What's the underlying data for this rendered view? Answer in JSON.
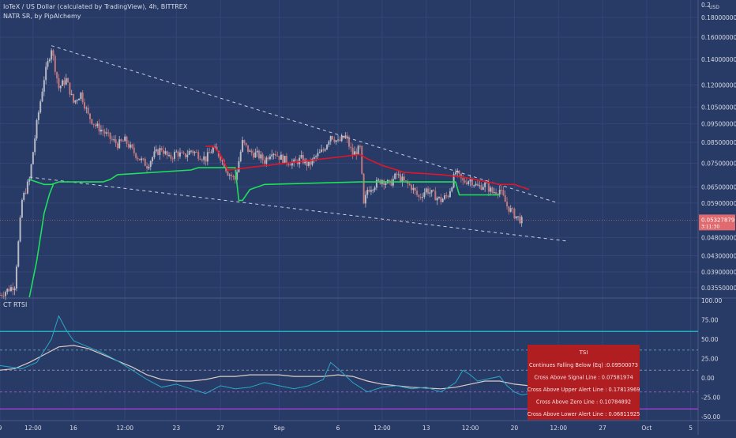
{
  "header": {
    "symbol_line": "IoTeX / US Dollar (calculated by TradingView), 4h, BITTREX",
    "indicator_line": "NATR SR, by PipAlchemy"
  },
  "lower_pane": {
    "indicator_label": "CT RTSI"
  },
  "chart_data": [
    {
      "type": "candlestick",
      "pair": "IoTeX / US Dollar",
      "source": "BITTREX",
      "interval": "4h",
      "currency_label": "USD",
      "y_scale": "log",
      "ylim": [
        0.0335,
        0.2
      ],
      "y_tick_labels": [
        "0.2",
        "0.18000000",
        "0.16000000",
        "0.14000000",
        "0.12000000",
        "0.10500000",
        "0.09500000",
        "0.08500000",
        "0.07500000",
        "0.06500000",
        "0.05900000",
        "0.04800000",
        "0.04300000",
        "0.03900000",
        "0.03550000"
      ],
      "y_tick_values": [
        0.2,
        0.18,
        0.16,
        0.14,
        0.12,
        0.105,
        0.095,
        0.085,
        0.075,
        0.065,
        0.059,
        0.048,
        0.043,
        0.039,
        0.0355
      ],
      "last_price_label": "0.05327879",
      "countdown_label": "3:11:30",
      "price_path": [
        [
          0,
          0.034
        ],
        [
          4,
          0.036
        ],
        [
          6,
          0.06
        ],
        [
          8,
          0.068
        ],
        [
          10,
          0.095
        ],
        [
          12,
          0.125
        ],
        [
          14,
          0.15
        ],
        [
          16,
          0.118
        ],
        [
          18,
          0.124
        ],
        [
          20,
          0.108
        ],
        [
          22,
          0.114
        ],
        [
          24,
          0.1
        ],
        [
          26,
          0.094
        ],
        [
          28,
          0.091
        ],
        [
          30,
          0.087
        ],
        [
          32,
          0.084
        ],
        [
          34,
          0.086
        ],
        [
          36,
          0.081
        ],
        [
          38,
          0.077
        ],
        [
          40,
          0.074
        ],
        [
          42,
          0.079
        ],
        [
          44,
          0.082
        ],
        [
          46,
          0.077
        ],
        [
          48,
          0.08
        ],
        [
          50,
          0.078
        ],
        [
          52,
          0.081
        ],
        [
          54,
          0.079
        ],
        [
          56,
          0.077
        ],
        [
          58,
          0.082
        ],
        [
          60,
          0.078
        ],
        [
          62,
          0.071
        ],
        [
          64,
          0.068
        ],
        [
          66,
          0.085
        ],
        [
          68,
          0.08
        ],
        [
          70,
          0.079
        ],
        [
          72,
          0.076
        ],
        [
          74,
          0.081
        ],
        [
          76,
          0.078
        ],
        [
          78,
          0.076
        ],
        [
          80,
          0.075
        ],
        [
          82,
          0.077
        ],
        [
          84,
          0.074
        ],
        [
          86,
          0.078
        ],
        [
          88,
          0.081
        ],
        [
          90,
          0.089
        ],
        [
          92,
          0.085
        ],
        [
          94,
          0.088
        ],
        [
          96,
          0.079
        ],
        [
          98,
          0.082
        ],
        [
          99,
          0.058
        ],
        [
          100,
          0.064
        ],
        [
          102,
          0.066
        ],
        [
          104,
          0.068
        ],
        [
          106,
          0.066
        ],
        [
          108,
          0.07
        ],
        [
          110,
          0.067
        ],
        [
          112,
          0.065
        ],
        [
          114,
          0.061
        ],
        [
          116,
          0.064
        ],
        [
          118,
          0.062
        ],
        [
          120,
          0.06
        ],
        [
          122,
          0.062
        ],
        [
          124,
          0.071
        ],
        [
          126,
          0.067
        ],
        [
          128,
          0.068
        ],
        [
          130,
          0.065
        ],
        [
          132,
          0.066
        ],
        [
          134,
          0.063
        ],
        [
          136,
          0.064
        ],
        [
          138,
          0.058
        ],
        [
          140,
          0.055
        ],
        [
          142,
          0.053
        ]
      ],
      "support_line": [
        [
          8,
          0.068
        ],
        [
          12,
          0.066
        ],
        [
          14,
          0.066
        ],
        [
          16,
          0.067
        ],
        [
          28,
          0.067
        ],
        [
          30,
          0.068
        ],
        [
          32,
          0.07
        ],
        [
          52,
          0.072
        ],
        [
          54,
          0.073
        ],
        [
          58,
          0.073
        ],
        [
          64,
          0.073
        ],
        [
          65,
          0.06
        ],
        [
          66,
          0.06
        ],
        [
          68,
          0.064
        ],
        [
          72,
          0.066
        ],
        [
          98,
          0.067
        ],
        [
          124,
          0.067
        ],
        [
          125,
          0.062
        ],
        [
          136,
          0.062
        ]
      ],
      "resistance_line": [
        [
          56,
          0.083
        ],
        [
          58,
          0.083
        ],
        [
          60,
          0.079
        ],
        [
          62,
          0.072
        ],
        [
          98,
          0.079
        ],
        [
          100,
          0.077
        ],
        [
          104,
          0.074
        ],
        [
          110,
          0.071
        ],
        [
          120,
          0.07
        ],
        [
          126,
          0.069
        ],
        [
          136,
          0.066
        ],
        [
          140,
          0.066
        ],
        [
          144,
          0.064
        ]
      ],
      "wedge_upper": [
        [
          14,
          0.152
        ],
        [
          152,
          0.059
        ]
      ],
      "wedge_lower": [
        [
          8,
          0.069
        ],
        [
          154,
          0.047
        ]
      ]
    },
    {
      "type": "line",
      "name": "CT RTSI",
      "ylim": [
        -55,
        102
      ],
      "y_tick_labels": [
        "100.00",
        "75.00",
        "50.00",
        "25.00",
        "0.00",
        "-25.00",
        "-50.00"
      ],
      "y_tick_values": [
        100,
        75,
        50,
        25,
        0,
        -25,
        -50
      ],
      "levels": {
        "upper_solid": 60,
        "upper_dashed": 36,
        "mid_dashed": 10,
        "lower_dashed": -18,
        "lower_solid": -40
      },
      "tsi": [
        [
          0,
          16
        ],
        [
          6,
          12
        ],
        [
          10,
          20
        ],
        [
          14,
          50
        ],
        [
          16,
          80
        ],
        [
          18,
          62
        ],
        [
          20,
          48
        ],
        [
          24,
          40
        ],
        [
          28,
          32
        ],
        [
          32,
          22
        ],
        [
          36,
          10
        ],
        [
          40,
          -2
        ],
        [
          44,
          -12
        ],
        [
          48,
          -8
        ],
        [
          52,
          -14
        ],
        [
          56,
          -20
        ],
        [
          60,
          -10
        ],
        [
          64,
          -14
        ],
        [
          68,
          -12
        ],
        [
          72,
          -6
        ],
        [
          76,
          -10
        ],
        [
          80,
          -14
        ],
        [
          84,
          -10
        ],
        [
          88,
          -2
        ],
        [
          90,
          20
        ],
        [
          92,
          12
        ],
        [
          96,
          -6
        ],
        [
          100,
          -18
        ],
        [
          104,
          -12
        ],
        [
          108,
          -10
        ],
        [
          112,
          -14
        ],
        [
          116,
          -12
        ],
        [
          120,
          -18
        ],
        [
          124,
          -6
        ],
        [
          126,
          10
        ],
        [
          128,
          4
        ],
        [
          130,
          -4
        ],
        [
          132,
          -2
        ],
        [
          136,
          2
        ],
        [
          138,
          -10
        ],
        [
          140,
          -18
        ],
        [
          142,
          -22
        ],
        [
          144,
          -20
        ]
      ],
      "signal": [
        [
          0,
          10
        ],
        [
          4,
          12
        ],
        [
          8,
          20
        ],
        [
          12,
          30
        ],
        [
          16,
          40
        ],
        [
          20,
          42
        ],
        [
          24,
          38
        ],
        [
          28,
          30
        ],
        [
          32,
          22
        ],
        [
          36,
          14
        ],
        [
          40,
          4
        ],
        [
          44,
          -2
        ],
        [
          48,
          -4
        ],
        [
          52,
          -4
        ],
        [
          56,
          -2
        ],
        [
          60,
          2
        ],
        [
          64,
          2
        ],
        [
          68,
          4
        ],
        [
          72,
          4
        ],
        [
          76,
          4
        ],
        [
          80,
          2
        ],
        [
          84,
          2
        ],
        [
          88,
          2
        ],
        [
          92,
          4
        ],
        [
          96,
          2
        ],
        [
          100,
          -4
        ],
        [
          104,
          -8
        ],
        [
          108,
          -10
        ],
        [
          112,
          -12
        ],
        [
          116,
          -13
        ],
        [
          120,
          -14
        ],
        [
          124,
          -12
        ],
        [
          128,
          -8
        ],
        [
          132,
          -4
        ],
        [
          136,
          -4
        ],
        [
          140,
          -8
        ],
        [
          144,
          -10
        ]
      ],
      "alert_box": {
        "title": "TSI",
        "lines": [
          "Continues Falling Below (Eq) :0.09500073",
          "Cross Above Signal Line : 0.07581974",
          "Cross Above Upper Alert Line : 0.17813969",
          "Cross Above Zero Line : 0.10784892",
          "Cross Above Lower Alert Line : 0.06811925"
        ]
      }
    }
  ],
  "x_axis": {
    "labels": [
      {
        "text": "9",
        "t": 0
      },
      {
        "text": "12:00",
        "t": 9
      },
      {
        "text": "16",
        "t": 20
      },
      {
        "text": "12:00",
        "t": 34
      },
      {
        "text": "23",
        "t": 48
      },
      {
        "text": "27",
        "t": 60
      },
      {
        "text": "Sep",
        "t": 76
      },
      {
        "text": "6",
        "t": 92
      },
      {
        "text": "12:00",
        "t": 104
      },
      {
        "text": "13",
        "t": 116
      },
      {
        "text": "12:00",
        "t": 128
      },
      {
        "text": "20",
        "t": 140
      },
      {
        "text": "12:00",
        "t": 152
      },
      {
        "text": "27",
        "t": 164
      },
      {
        "text": "Oct",
        "t": 176
      },
      {
        "text": "5",
        "t": 188
      }
    ]
  },
  "colors": {
    "background": "#283a66",
    "grid": "#34467a",
    "candle_up": "#b6b9c6",
    "candle_down": "#c0787e",
    "support": "#1ee05a",
    "resistance": "#e0162a",
    "wedge": "#c9cede",
    "tsi": "#2aa7c6",
    "signal": "#dcccc6",
    "level_cyan": "#1fd3dc",
    "level_magenta": "#b23fd8",
    "alert_bg": "#b01e22",
    "price_tag": "#e06a6e"
  }
}
